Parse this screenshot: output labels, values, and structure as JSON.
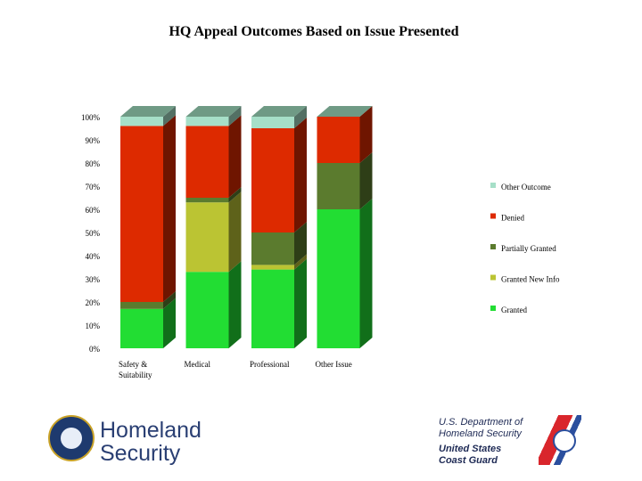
{
  "chart_data": {
    "type": "bar",
    "stacked": true,
    "percent": true,
    "title": "HQ Appeal Outcomes Based on Issue Presented",
    "categories": [
      "Safety & Suitability",
      "Medical",
      "Professional",
      "Other Issue"
    ],
    "y_ticks": [
      "0%",
      "10%",
      "20%",
      "30%",
      "40%",
      "50%",
      "60%",
      "70%",
      "80%",
      "90%",
      "100%"
    ],
    "ylim": [
      0,
      100
    ],
    "legend_position": "right",
    "series": [
      {
        "name": "Granted",
        "color": "#22dd33",
        "values": [
          17,
          33,
          34,
          60
        ]
      },
      {
        "name": "Granted New Info",
        "color": "#bbc433",
        "values": [
          0,
          30,
          2,
          0
        ]
      },
      {
        "name": "Partially Granted",
        "color": "#5b7b2e",
        "values": [
          3,
          2,
          14,
          20
        ]
      },
      {
        "name": "Denied",
        "color": "#dd2a00",
        "values": [
          76,
          31,
          45,
          20
        ]
      },
      {
        "name": "Other Outcome",
        "color": "#a6dfc8",
        "values": [
          4,
          4,
          5,
          0
        ]
      }
    ]
  },
  "footer": {
    "dhs_line1": "Homeland",
    "dhs_line2": "Security",
    "uscg_line1": "U.S. Department of",
    "uscg_line2": "Homeland Security",
    "uscg_line3": "United States",
    "uscg_line4": "Coast Guard"
  }
}
